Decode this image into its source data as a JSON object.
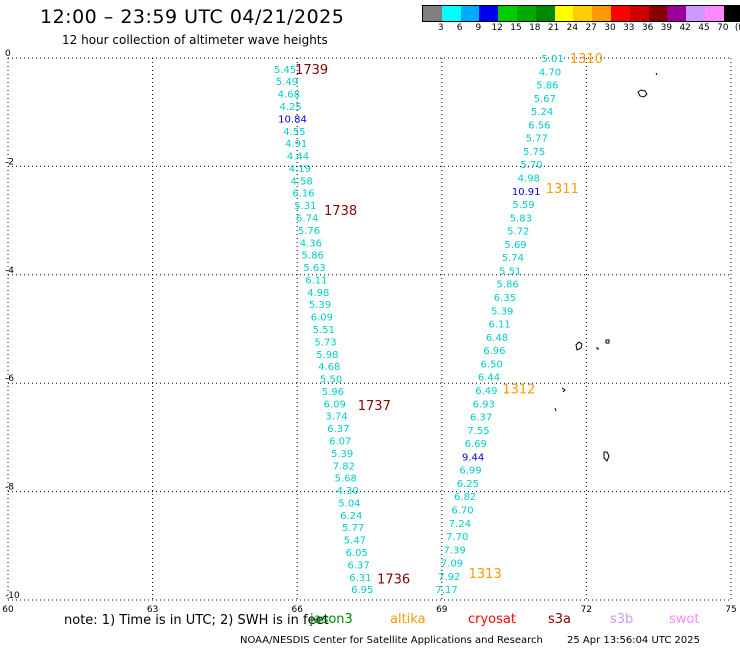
{
  "header": {
    "title": "12:00 – 23:59 UTC 04/21/2025",
    "subtitle": "12 hour collection of altimeter wave heights"
  },
  "colorbar": {
    "colors": [
      "#808080",
      "#00ffff",
      "#00aaff",
      "#0000ee",
      "#00cc00",
      "#00aa00",
      "#008800",
      "#ffff00",
      "#ffcc00",
      "#ff9900",
      "#ff0000",
      "#cc0000",
      "#880000",
      "#990099",
      "#cc99ff",
      "#ff88ff",
      "#000000"
    ],
    "labels": [
      "3",
      "6",
      "9",
      "12",
      "15",
      "18",
      "21",
      "24",
      "27",
      "30",
      "33",
      "36",
      "39",
      "42",
      "45",
      "70",
      "(ft)"
    ]
  },
  "chart_data": {
    "type": "map",
    "x_ticks": [
      60,
      63,
      66,
      69,
      72,
      75
    ],
    "x_tick_labels": [
      "60",
      "63",
      "66",
      "69",
      "72",
      "75"
    ],
    "y_ticks": [
      0,
      -2,
      -4,
      -6,
      -8,
      -10
    ],
    "y_tick_labels": [
      "0",
      "-2",
      "-4",
      "-6",
      "-8",
      "-10"
    ],
    "xlim": [
      60,
      75
    ],
    "ylim": [
      -10,
      0
    ],
    "grid": true,
    "tracks": [
      {
        "values": [
          "5.45",
          "5.49",
          "4.68",
          "4.25",
          "10.84",
          "4.55",
          "4.91",
          "4.44",
          "4.19",
          "4.58",
          "6.16",
          "5.31",
          "6.74",
          "5.76",
          "4.36",
          "5.86",
          "5.63",
          "6.11",
          "4.98",
          "5.39",
          "6.09",
          "5.51",
          "5.73",
          "5.98",
          "4.68",
          "5.50",
          "5.96",
          "6.09",
          "3.74",
          "6.37",
          "6.07",
          "5.39",
          "7.82",
          "5.68",
          "4.30",
          "5.04",
          "6.24",
          "5.77",
          "5.47",
          "6.05",
          "6.37",
          "6.31",
          "6.95"
        ],
        "lon_start": 65.75,
        "lon_end": 67.35,
        "lat_start": -0.2,
        "lat_end": -9.8,
        "time_labels": [
          {
            "text": "1739",
            "lon": 66.3,
            "lat": -0.2
          },
          {
            "text": "1738",
            "lon": 66.9,
            "lat": -2.8
          },
          {
            "text": "1737",
            "lon": 67.6,
            "lat": -6.4
          },
          {
            "text": "1736",
            "lon": 68.0,
            "lat": -9.6
          }
        ]
      },
      {
        "values": [
          "5.01",
          "4.70",
          "5.86",
          "5.67",
          "5.24",
          "6.56",
          "5.77",
          "5.75",
          "5.70",
          "4.98",
          "10.91",
          "5.59",
          "5.83",
          "5.72",
          "5.69",
          "5.74",
          "5.51",
          "5.86",
          "6.35",
          "5.39",
          "6.11",
          "6.48",
          "6.96",
          "6.50",
          "6.44",
          "6.49",
          "6.93",
          "6.37",
          "7.55",
          "6.69",
          "9.44",
          "6.99",
          "6.25",
          "6.82",
          "6.70",
          "7.24",
          "7.70",
          "7.39",
          "7.09",
          "7.92",
          "7.17"
        ],
        "lon_start": 71.3,
        "lon_end": 69.1,
        "lat_start": 0.0,
        "lat_end": -9.8,
        "time_labels": [
          {
            "text": "1310",
            "lon": 72.0,
            "lat": 0.0
          },
          {
            "text": "1311",
            "lon": 71.5,
            "lat": -2.4
          },
          {
            "text": "1312",
            "lon": 70.6,
            "lat": -6.1
          },
          {
            "text": "1313",
            "lon": 69.9,
            "lat": -9.5
          }
        ]
      }
    ]
  },
  "note": {
    "text": "note:  1) Time is in UTC;  2) SWH is in feet",
    "legend": [
      {
        "name": "jason3",
        "color": "#008800"
      },
      {
        "name": "altika",
        "color": "#ff9900"
      },
      {
        "name": "cryosat",
        "color": "#ff0000"
      },
      {
        "name": "s3a",
        "color": "#880000"
      },
      {
        "name": "s3b",
        "color": "#cc99ff"
      },
      {
        "name": "swot",
        "color": "#ff88ff"
      }
    ]
  },
  "footer": {
    "left": "NOAA/NESDIS Center for Satellite Applications and Research",
    "right": "25 Apr 13:56:04 UTC 2025"
  }
}
